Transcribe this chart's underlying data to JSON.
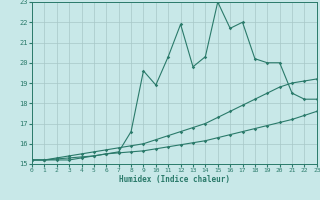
{
  "xlabel": "Humidex (Indice chaleur)",
  "bg_color": "#c8e8e8",
  "grid_color": "#a8c8c8",
  "line_color": "#2a7a6a",
  "x": [
    0,
    1,
    2,
    3,
    4,
    5,
    6,
    7,
    8,
    9,
    10,
    11,
    12,
    13,
    14,
    15,
    16,
    17,
    18,
    19,
    20,
    21,
    22,
    23
  ],
  "y_jagged": [
    15.2,
    15.2,
    15.2,
    15.2,
    15.3,
    15.4,
    15.5,
    15.6,
    16.6,
    19.6,
    18.9,
    20.3,
    21.9,
    19.8,
    20.3,
    23.0,
    21.7,
    22.0,
    20.2,
    20.0,
    20.0,
    18.5,
    18.2,
    18.2
  ],
  "y_mid": [
    15.2,
    15.2,
    15.3,
    15.4,
    15.5,
    15.6,
    15.7,
    15.8,
    15.9,
    16.0,
    16.2,
    16.4,
    16.6,
    16.8,
    17.0,
    17.3,
    17.6,
    17.9,
    18.2,
    18.5,
    18.8,
    19.0,
    19.1,
    19.2
  ],
  "y_bot": [
    15.2,
    15.2,
    15.25,
    15.3,
    15.35,
    15.4,
    15.5,
    15.55,
    15.6,
    15.65,
    15.75,
    15.85,
    15.95,
    16.05,
    16.15,
    16.3,
    16.45,
    16.6,
    16.75,
    16.9,
    17.05,
    17.2,
    17.4,
    17.6
  ],
  "ylim": [
    15,
    23
  ],
  "xlim": [
    0,
    23
  ]
}
